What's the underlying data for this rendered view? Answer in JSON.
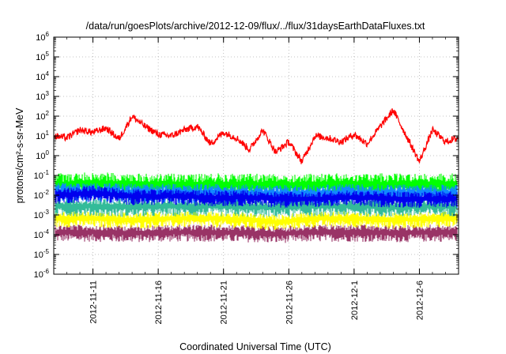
{
  "chart_data": {
    "type": "line",
    "title": "/data/run/goesPlots/archive/2012-12-09/flux/../flux/31daysEarthDataFluxes.txt",
    "xlabel": "Coordinated Universal Time (UTC)",
    "ylabel": "protons/cm²-s-sr-MeV",
    "y_scale": "log",
    "ylim": [
      1e-06,
      1000000.0
    ],
    "xlim": [
      "2012-11-08",
      "2012-12-09"
    ],
    "x_ticks": [
      "2012-11-11",
      "2012-11-16",
      "2012-11-21",
      "2012-11-26",
      "2012-12-1",
      "2012-12-6"
    ],
    "y_ticks": [
      {
        "value": 1e-06,
        "base": "10",
        "exp": "-6"
      },
      {
        "value": 1e-05,
        "base": "10",
        "exp": "-5"
      },
      {
        "value": 0.0001,
        "base": "10",
        "exp": "-4"
      },
      {
        "value": 0.001,
        "base": "10",
        "exp": "-3"
      },
      {
        "value": 0.01,
        "base": "10",
        "exp": "-2"
      },
      {
        "value": 0.1,
        "base": "10",
        "exp": "-1"
      },
      {
        "value": 1,
        "base": "10",
        "exp": "0"
      },
      {
        "value": 10,
        "base": "10",
        "exp": "1"
      },
      {
        "value": 100,
        "base": "10",
        "exp": "2"
      },
      {
        "value": 1000,
        "base": "10",
        "exp": "3"
      },
      {
        "value": 10000,
        "base": "10",
        "exp": "4"
      },
      {
        "value": 100000,
        "base": "10",
        "exp": "5"
      },
      {
        "value": 1000000,
        "base": "10",
        "exp": "6"
      }
    ],
    "grid": true,
    "series": [
      {
        "color": "#993366",
        "noisy": true,
        "noise_low": 4e-05,
        "noise_high": 0.0003,
        "x": [
          "2012-11-08",
          "2012-11-11",
          "2012-11-14",
          "2012-11-17",
          "2012-11-20",
          "2012-11-23",
          "2012-11-25",
          "2012-11-28",
          "2012-12-01",
          "2012-12-04",
          "2012-12-07",
          "2012-12-09"
        ],
        "y": [
          0.00012,
          0.00012,
          0.00011,
          0.00012,
          0.00012,
          0.00011,
          0.0001,
          0.00012,
          0.00012,
          0.00011,
          0.00012,
          0.00012
        ]
      },
      {
        "color": "#ffff00",
        "noisy": true,
        "noise_low": 0.0003,
        "noise_high": 0.002,
        "x": [
          "2012-11-08",
          "2012-11-11",
          "2012-11-14",
          "2012-11-17",
          "2012-11-20",
          "2012-11-23",
          "2012-11-25",
          "2012-11-28",
          "2012-12-01",
          "2012-12-04",
          "2012-12-07",
          "2012-12-09"
        ],
        "y": [
          0.0006,
          0.0006,
          0.0005,
          0.0006,
          0.0006,
          0.0005,
          0.0004,
          0.0006,
          0.0006,
          0.0005,
          0.0006,
          0.0006
        ]
      },
      {
        "color": "#33bb99",
        "noisy": true,
        "noise_low": 0.0009,
        "noise_high": 0.008,
        "x": [
          "2012-11-08",
          "2012-11-11",
          "2012-11-14",
          "2012-11-17",
          "2012-11-20",
          "2012-11-23",
          "2012-11-25",
          "2012-11-28",
          "2012-12-01",
          "2012-12-04",
          "2012-12-07",
          "2012-12-09"
        ],
        "y": [
          0.0025,
          0.0025,
          0.0023,
          0.0025,
          0.0025,
          0.0023,
          0.0022,
          0.0025,
          0.0025,
          0.0023,
          0.0025,
          0.0025
        ]
      },
      {
        "color": "#00ff00",
        "noisy": true,
        "noise_low": 0.005,
        "noise_high": 0.09,
        "x": [
          "2012-11-08",
          "2012-11-11",
          "2012-11-14",
          "2012-11-17",
          "2012-11-20",
          "2012-11-23",
          "2012-11-25",
          "2012-11-28",
          "2012-12-01",
          "2012-12-04",
          "2012-12-07",
          "2012-12-09"
        ],
        "y": [
          0.03,
          0.035,
          0.03,
          0.03,
          0.03,
          0.03,
          0.028,
          0.03,
          0.03,
          0.03,
          0.03,
          0.03
        ]
      },
      {
        "color": "#1188ff",
        "noisy": true,
        "noise_low": 0.004,
        "noise_high": 0.04,
        "x": [
          "2012-11-08",
          "2012-11-11",
          "2012-11-14",
          "2012-11-17",
          "2012-11-20",
          "2012-11-23",
          "2012-11-25",
          "2012-11-28",
          "2012-12-01",
          "2012-12-04",
          "2012-12-07",
          "2012-12-09"
        ],
        "y": [
          0.013,
          0.014,
          0.012,
          0.012,
          0.012,
          0.011,
          0.01,
          0.011,
          0.012,
          0.011,
          0.011,
          0.011
        ]
      },
      {
        "color": "#0000ee",
        "noisy": true,
        "noise_low": 0.003,
        "noise_high": 0.02,
        "x": [
          "2012-11-08",
          "2012-11-11",
          "2012-11-14",
          "2012-11-17",
          "2012-11-20",
          "2012-11-23",
          "2012-11-25",
          "2012-11-28",
          "2012-12-01",
          "2012-12-04",
          "2012-12-07",
          "2012-12-09"
        ],
        "y": [
          0.009,
          0.012,
          0.008,
          0.008,
          0.007,
          0.007,
          0.006,
          0.006,
          0.007,
          0.006,
          0.006,
          0.006
        ]
      },
      {
        "color": "#ff0000",
        "noisy": false,
        "x": [
          "2012-11-08",
          "2012-11-09",
          "2012-11-10",
          "2012-11-11",
          "2012-11-12",
          "2012-11-13",
          "2012-11-14",
          "2012-11-15",
          "2012-11-16",
          "2012-11-17",
          "2012-11-18",
          "2012-11-19",
          "2012-11-20",
          "2012-11-21",
          "2012-11-22",
          "2012-11-23",
          "2012-11-24",
          "2012-11-25",
          "2012-11-26",
          "2012-11-27",
          "2012-11-28",
          "2012-11-29",
          "2012-11-30",
          "2012-12-01",
          "2012-12-02",
          "2012-12-03",
          "2012-12-04",
          "2012-12-05",
          "2012-12-06",
          "2012-12-07",
          "2012-12-08",
          "2012-12-09"
        ],
        "y": [
          10,
          8,
          20,
          15,
          25,
          7,
          100,
          30,
          12,
          10,
          20,
          30,
          4,
          15,
          8,
          2,
          20,
          1.5,
          5,
          0.5,
          10,
          8,
          5,
          12,
          4,
          30,
          200,
          10,
          0.5,
          20,
          5,
          8
        ]
      }
    ]
  }
}
